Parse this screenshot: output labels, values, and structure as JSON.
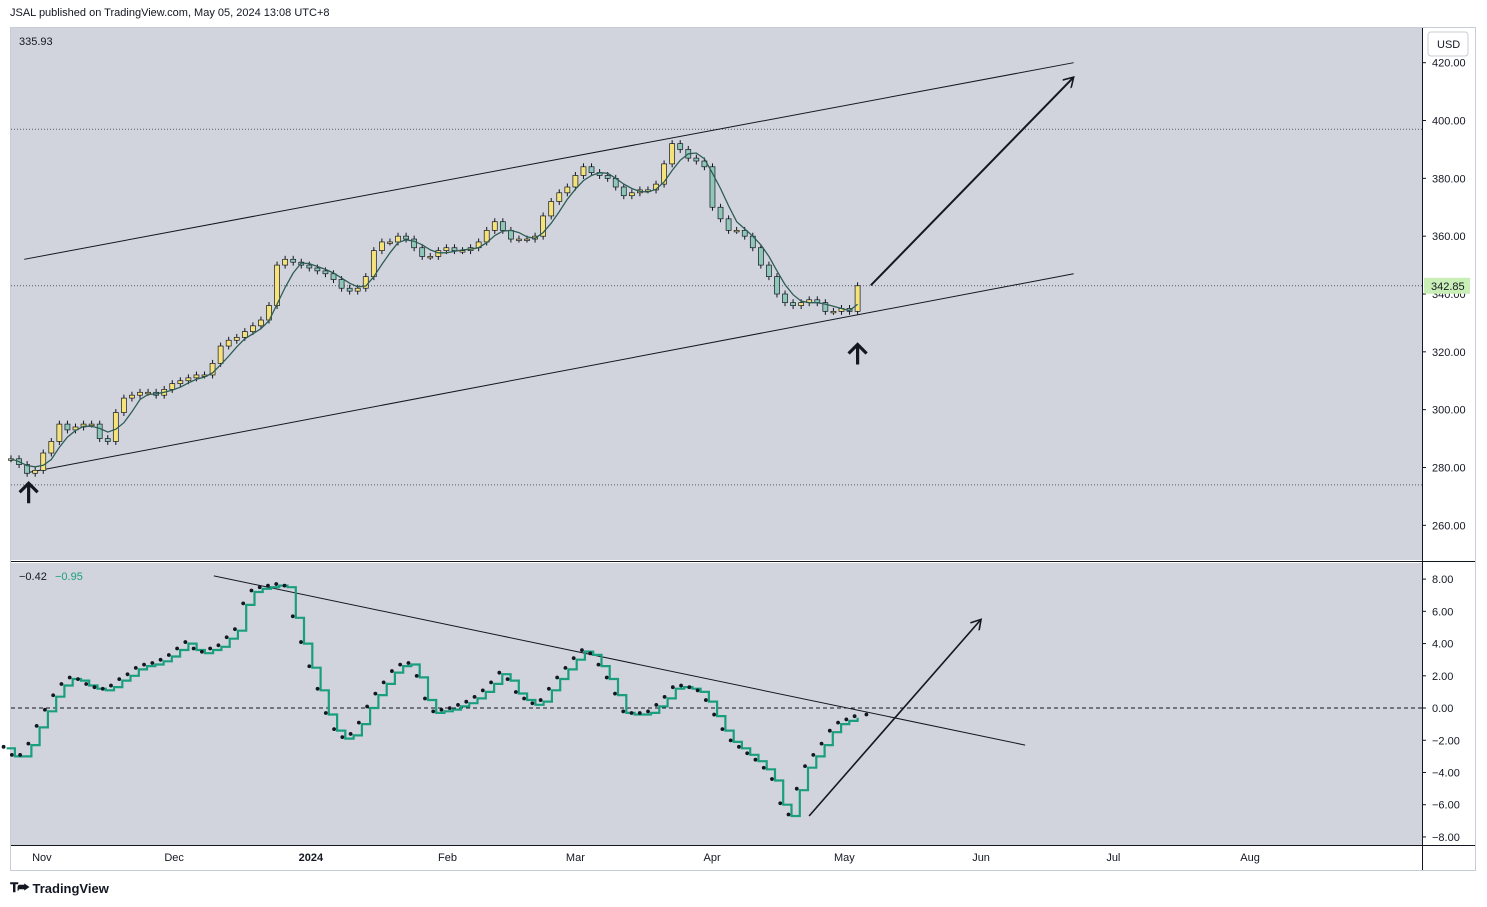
{
  "header": {
    "published": "JSAL published on TradingView.com, May 05, 2024 13:08 UTC+8"
  },
  "footer": {
    "brand": "TradingView"
  },
  "colors": {
    "pane_bg": "#d1d4dc",
    "up_candle": "#f5e37a",
    "down_candle": "#8fc8b8",
    "candle_border": "#131722",
    "ma_line": "#2e5d55",
    "osc_line": "#1a9e80",
    "osc_dots": "#131722",
    "price_tag_bg": "#c9efb7"
  },
  "chart_data": [
    {
      "type": "candlestick",
      "pane": "price",
      "top_left_value": "335.93",
      "currency": "USD",
      "last_price_label": "342.85",
      "last_price": 342.85,
      "y_ticks": [
        "420.00",
        "400.00",
        "380.00",
        "360.00",
        "340.00",
        "320.00",
        "300.00",
        "280.00",
        "260.00"
      ],
      "y_tick_values": [
        420,
        400,
        380,
        360,
        340,
        320,
        300,
        280,
        260
      ],
      "ylim": [
        248,
        432
      ],
      "horizontal_levels": [
        397,
        342.85,
        274
      ],
      "x_labels": [
        "Nov",
        "Dec",
        "2024",
        "Feb",
        "Mar",
        "Apr",
        "May",
        "Jun",
        "Jul",
        "Aug"
      ],
      "x_label_dates": [
        "2023-11-01",
        "2023-12-01",
        "2024-01-01",
        "2024-02-01",
        "2024-03-01",
        "2024-04-01",
        "2024-05-01",
        "2024-06-01",
        "2024-07-01",
        "2024-08-01"
      ],
      "x_range": [
        "2023-10-25",
        "2024-09-09"
      ],
      "daily_closes": [
        283,
        281,
        278,
        279,
        285,
        289,
        295,
        293,
        294,
        295,
        295,
        290,
        289,
        299,
        304,
        305,
        306,
        306,
        305,
        307,
        309,
        310,
        311,
        312,
        312,
        316,
        322,
        324,
        325,
        327,
        329,
        331,
        336,
        350,
        352,
        351,
        350,
        349,
        348,
        347,
        345,
        342,
        341,
        342,
        346,
        355,
        358,
        358,
        360,
        359,
        356,
        353,
        353,
        355,
        356,
        355,
        355,
        356,
        358,
        362,
        365,
        362,
        359,
        359,
        359,
        360,
        367,
        372,
        375,
        377,
        381,
        384,
        382,
        381,
        380,
        377,
        374,
        375,
        376,
        376,
        378,
        385,
        392,
        390,
        387,
        386,
        384,
        370,
        366,
        362,
        362,
        360,
        356,
        350,
        346,
        340,
        337,
        336,
        337,
        338,
        337,
        334,
        334,
        335,
        334,
        342.85
      ],
      "trendlines": [
        {
          "from": [
            "2023-10-28",
            352
          ],
          "to": [
            "2024-06-22",
            420
          ]
        },
        {
          "from": [
            "2023-10-28",
            278
          ],
          "to": [
            "2024-06-22",
            347
          ]
        }
      ],
      "arrows": [
        {
          "kind": "line",
          "from": [
            "2024-05-07",
            343
          ],
          "to": [
            "2024-06-22",
            415
          ]
        },
        {
          "kind": "up-marker",
          "at": [
            "2023-10-29",
            278
          ]
        },
        {
          "kind": "up-marker",
          "at": [
            "2024-05-04",
            326
          ]
        }
      ]
    },
    {
      "type": "line",
      "pane": "oscillator",
      "legend_values": [
        "−0.42",
        "−0.95"
      ],
      "y_ticks": [
        "8.00",
        "6.00",
        "4.00",
        "2.00",
        "0.00",
        "−2.00",
        "−4.00",
        "−6.00",
        "−8.00"
      ],
      "y_tick_values": [
        8,
        6,
        4,
        2,
        0,
        -2,
        -4,
        -6,
        -8
      ],
      "ylim": [
        -8.5,
        9
      ],
      "zero_line": 0,
      "values": [
        -2.5,
        -3,
        -3,
        -2.3,
        -1.2,
        -0.2,
        0.7,
        1.4,
        1.8,
        1.7,
        1.4,
        1.2,
        1.1,
        1.3,
        1.7,
        2,
        2.4,
        2.6,
        2.7,
        2.9,
        3.2,
        3.6,
        4,
        3.6,
        3.4,
        3.6,
        3.8,
        4.3,
        4.8,
        6.4,
        7.2,
        7.4,
        7.5,
        7.6,
        7.5,
        5.6,
        4,
        2.5,
        1.1,
        -0.4,
        -1.4,
        -1.9,
        -1.7,
        -1,
        0,
        0.8,
        1.5,
        2.2,
        2.6,
        2.7,
        1.9,
        0.5,
        -0.3,
        -0.2,
        -0.1,
        0.1,
        0.3,
        0.6,
        1.0,
        1.5,
        2.1,
        1.7,
        0.9,
        0.5,
        0.2,
        0.4,
        1.1,
        1.8,
        2.4,
        3.0,
        3.5,
        3.3,
        2.6,
        1.8,
        0.8,
        -0.3,
        -0.4,
        -0.4,
        -0.3,
        0.1,
        0.6,
        1.2,
        1.3,
        1.2,
        1.0,
        0.4,
        -0.5,
        -1.4,
        -2.1,
        -2.5,
        -2.9,
        -3.3,
        -3.8,
        -4.5,
        -6.0,
        -6.7,
        -5.1,
        -3.7,
        -3.0,
        -2.3,
        -1.5,
        -1.0,
        -0.8,
        -0.6
      ],
      "last_dot": -0.4,
      "trendlines": [
        {
          "from": [
            "2023-12-10",
            8.2
          ],
          "to": [
            "2024-06-11",
            -2.3
          ]
        },
        {
          "from": [
            "2024-04-23",
            -6.7
          ],
          "to": [
            "2024-06-01",
            5.5
          ],
          "arrow": true
        }
      ]
    }
  ]
}
